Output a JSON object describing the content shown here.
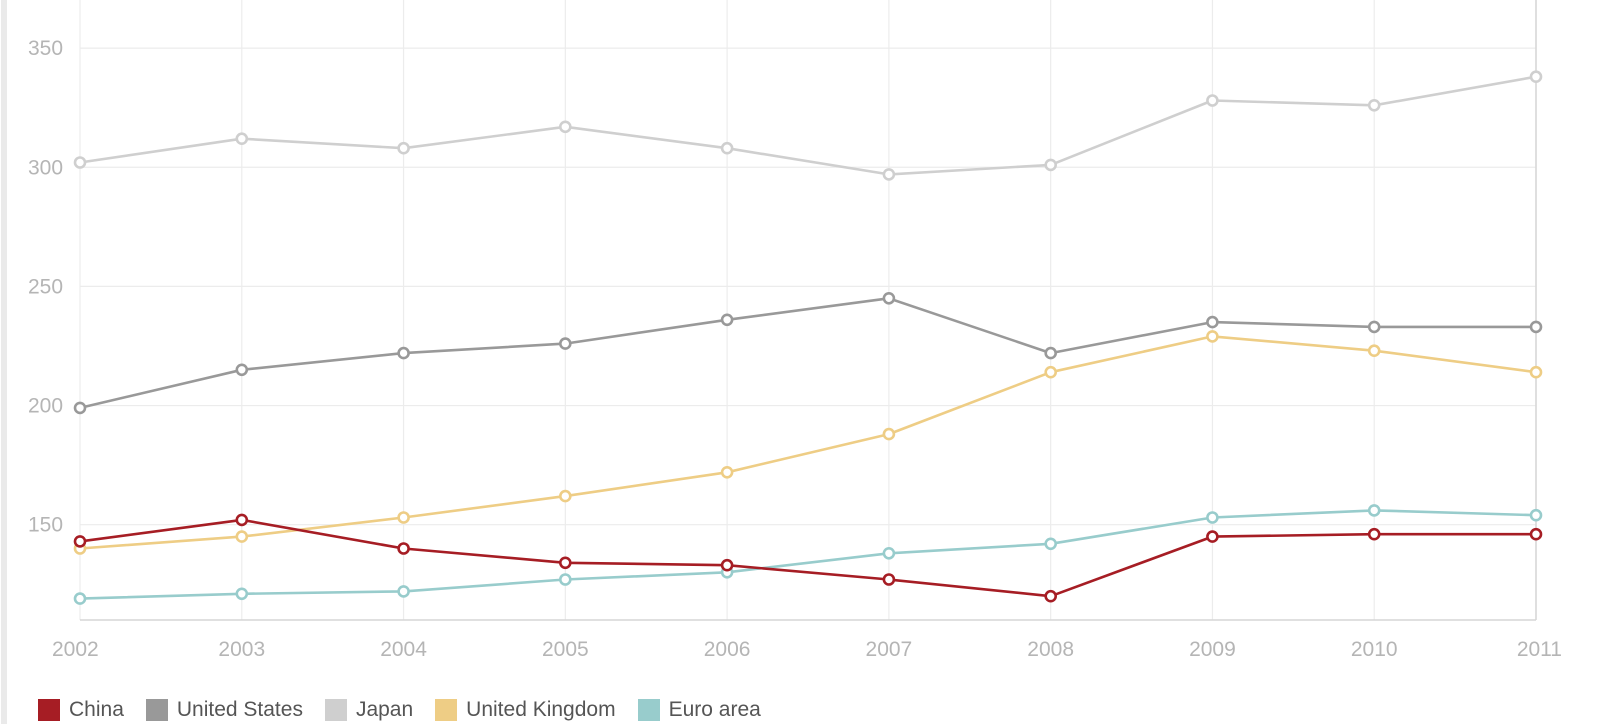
{
  "chart_data": {
    "type": "line",
    "x": [
      "2002",
      "2003",
      "2004",
      "2005",
      "2006",
      "2007",
      "2008",
      "2009",
      "2010",
      "2011"
    ],
    "y_ticks": [
      150,
      200,
      250,
      300,
      350
    ],
    "ylim": [
      110,
      366
    ],
    "grid": true,
    "legend_position": "bottom-left",
    "series": [
      {
        "name": "China",
        "color": "#a61d24",
        "values": [
          143,
          152,
          140,
          134,
          133,
          127,
          120,
          145,
          146,
          146
        ]
      },
      {
        "name": "United States",
        "color": "#999999",
        "values": [
          199,
          215,
          222,
          226,
          236,
          245,
          222,
          235,
          233,
          233
        ]
      },
      {
        "name": "Japan",
        "color": "#cfcfcf",
        "values": [
          302,
          312,
          308,
          317,
          308,
          297,
          301,
          328,
          326,
          338
        ]
      },
      {
        "name": "United Kingdom",
        "color": "#eecd85",
        "values": [
          140,
          145,
          153,
          162,
          172,
          188,
          214,
          229,
          223,
          214
        ]
      },
      {
        "name": "Euro area",
        "color": "#98cccc",
        "values": [
          119,
          121,
          122,
          127,
          130,
          138,
          142,
          153,
          156,
          154
        ]
      }
    ]
  }
}
